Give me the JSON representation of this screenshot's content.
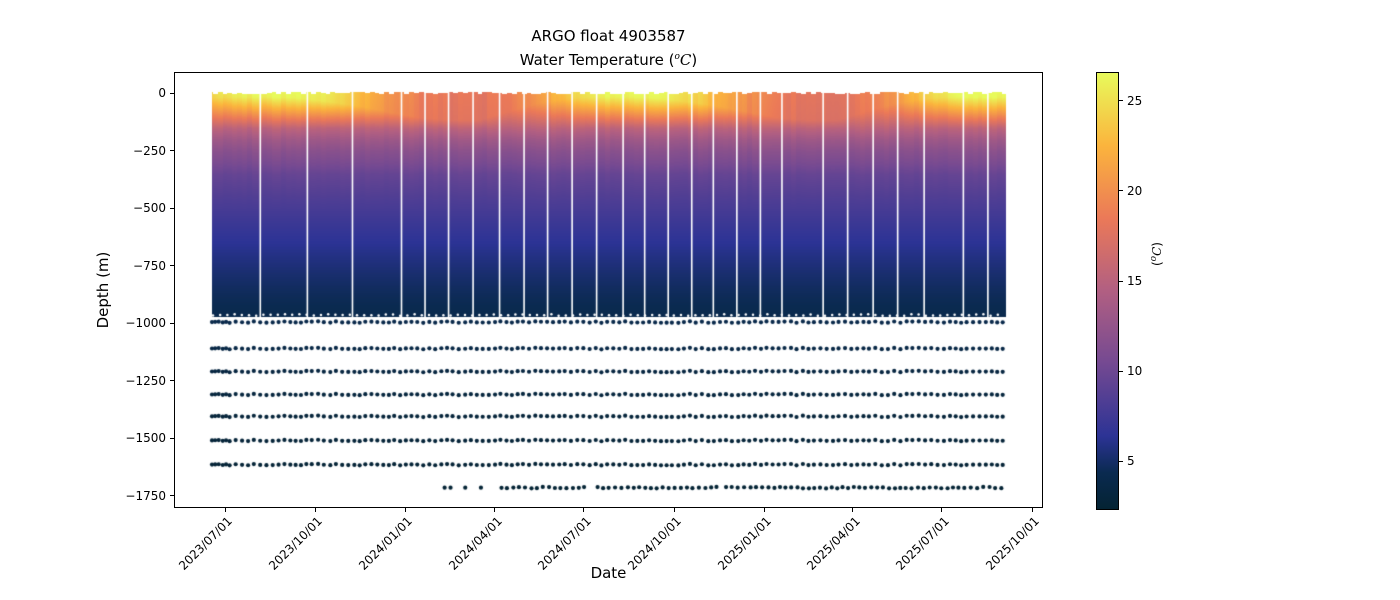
{
  "labels": {
    "title_line1": "ARGO float 4903587",
    "subtitle_pre": "Water Temperature (",
    "subtitle_sup": "o",
    "subtitle_c": "C",
    "subtitle_post": ")",
    "xlabel": "Date",
    "ylabel": "Depth (m)",
    "cbar_pre": "(",
    "cbar_sup": "o",
    "cbar_c": "C",
    "cbar_post": ")"
  },
  "chart_data": {
    "type": "heatmap",
    "title": "ARGO float 4903587",
    "subtitle": "Water Temperature (°C)",
    "xlabel": "Date",
    "ylabel": "Depth (m)",
    "x_range_dates": [
      "2023/06/18",
      "2025/09/03"
    ],
    "x_ticks": [
      {
        "label": "2023/07/01",
        "day": 0
      },
      {
        "label": "2023/10/01",
        "day": 92
      },
      {
        "label": "2024/01/01",
        "day": 184
      },
      {
        "label": "2024/04/01",
        "day": 275
      },
      {
        "label": "2024/07/01",
        "day": 366
      },
      {
        "label": "2024/10/01",
        "day": 458
      },
      {
        "label": "2025/01/01",
        "day": 550
      },
      {
        "label": "2025/04/01",
        "day": 640
      },
      {
        "label": "2025/07/01",
        "day": 731
      },
      {
        "label": "2025/10/01",
        "day": 823
      }
    ],
    "y_ticks": [
      {
        "label": "0",
        "m": 0
      },
      {
        "label": "−250",
        "m": 250
      },
      {
        "label": "−500",
        "m": 500
      },
      {
        "label": "−750",
        "m": 750
      },
      {
        "label": "−1000",
        "m": 1000
      },
      {
        "label": "−1250",
        "m": 1250
      },
      {
        "label": "−1500",
        "m": 1500
      },
      {
        "label": "−1750",
        "m": 1750
      }
    ],
    "ylim": [
      0,
      -1750
    ],
    "grid": false,
    "legend": "colorbar-right",
    "colorbar": {
      "label": "(°C)",
      "ticks": [
        5,
        10,
        15,
        20,
        25
      ],
      "vmin": 2.3,
      "vmax": 26.6,
      "colormap_name": "thermal",
      "colormap_stops": [
        [
          0.0,
          "#042333"
        ],
        [
          0.083,
          "#0a2a50"
        ],
        [
          0.167,
          "#2c3395"
        ],
        [
          0.333,
          "#744992"
        ],
        [
          0.5,
          "#b15f82"
        ],
        [
          0.667,
          "#eb7958"
        ],
        [
          0.833,
          "#fbb43d"
        ],
        [
          1.0,
          "#e8fa5b"
        ]
      ]
    },
    "profile_interval_days": 5,
    "surface_series": {
      "days_from_2023_07_01": [
        -13,
        0,
        15,
        46,
        77,
        107,
        138,
        168,
        199,
        230,
        259,
        290,
        320,
        351,
        381,
        412,
        443,
        473,
        504,
        534,
        565,
        596,
        624,
        655,
        685,
        716,
        746,
        777,
        795
      ],
      "sst_c": [
        24.5,
        25.5,
        26.2,
        26.6,
        26.4,
        25.6,
        23.0,
        20.5,
        18.8,
        18.0,
        18.0,
        19.0,
        21.0,
        24.0,
        26.3,
        26.6,
        26.5,
        25.0,
        22.5,
        20.0,
        18.5,
        17.8,
        17.8,
        18.8,
        21.0,
        24.5,
        26.6,
        26.8,
        26.5
      ],
      "mixed_layer_depth_m": [
        18,
        15,
        15,
        14,
        20,
        35,
        55,
        80,
        105,
        115,
        115,
        75,
        40,
        20,
        15,
        14,
        20,
        35,
        55,
        80,
        105,
        115,
        115,
        75,
        40,
        20,
        15,
        14,
        16
      ]
    },
    "thermocline_profile": {
      "depth_m": [
        150,
        200,
        250,
        300,
        350,
        400,
        450,
        500,
        550,
        600,
        650,
        700,
        750,
        800,
        850,
        900,
        950,
        995
      ],
      "temp_c": [
        15.2,
        13.2,
        11.8,
        10.8,
        9.6,
        9.0,
        8.4,
        7.9,
        7.35,
        6.85,
        6.35,
        5.9,
        5.5,
        5.1,
        4.75,
        4.45,
        4.2,
        4.0
      ]
    },
    "continuous_band_depth_range_m": [
      0,
      -980
    ],
    "deep_scatter_rows": [
      {
        "depth_m": -995,
        "temp_c": 3.95,
        "edge_row": true
      },
      {
        "depth_m": -1110,
        "temp_c": 3.6
      },
      {
        "depth_m": -1210,
        "temp_c": 3.3
      },
      {
        "depth_m": -1310,
        "temp_c": 3.05
      },
      {
        "depth_m": -1405,
        "temp_c": 2.85
      },
      {
        "depth_m": -1510,
        "temp_c": 2.7
      },
      {
        "depth_m": -1615,
        "temp_c": 2.55
      },
      {
        "depth_m": -1715,
        "temp_c": 2.45,
        "partial": true,
        "isolated_dot_days": [
          224,
          230,
          245,
          261
        ],
        "segments_days": [
          [
            282,
            367
          ],
          [
            380,
            503
          ],
          [
            511,
            795
          ]
        ]
      }
    ],
    "full_row_range_days": [
      -13,
      795
    ],
    "missing_profile_gap_days": [
      36,
      84,
      130,
      180,
      204,
      228,
      253,
      280,
      305,
      329,
      354,
      379,
      406,
      428,
      452,
      476,
      498,
      522,
      546,
      568,
      610,
      635,
      661,
      686,
      713,
      753,
      778
    ]
  }
}
